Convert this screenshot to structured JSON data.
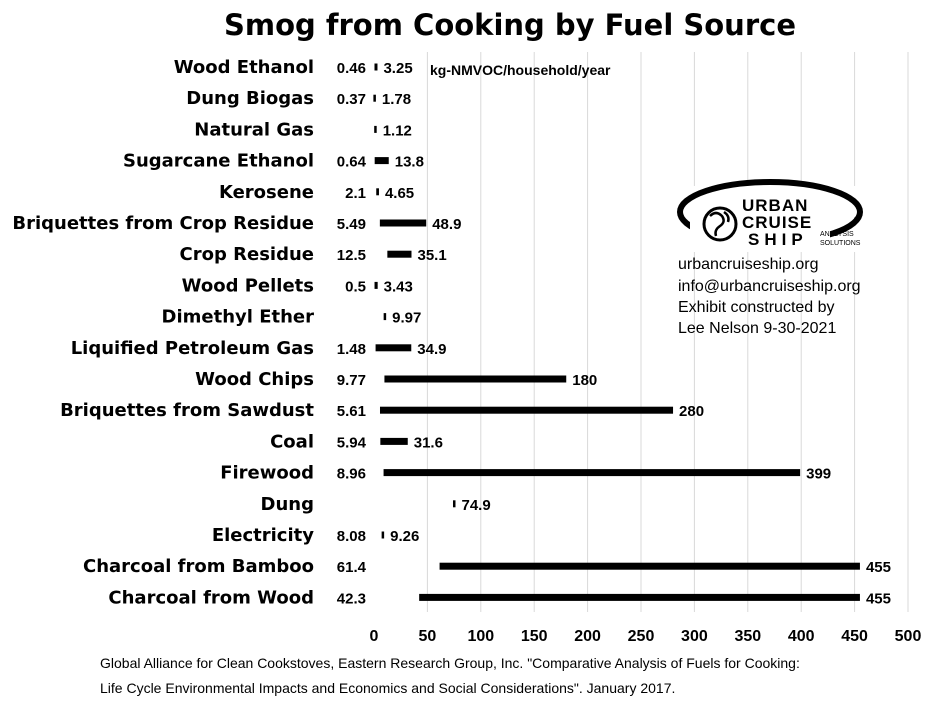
{
  "chart_data": {
    "type": "bar",
    "orientation": "horizontal",
    "subtype": "floating-range",
    "title": "Smog from Cooking by Fuel Source",
    "unit_label": "kg-NMVOC/household/year",
    "xlim": [
      0,
      500
    ],
    "x_ticks": [
      "0",
      "50",
      "100",
      "150",
      "200",
      "250",
      "300",
      "350",
      "400",
      "450",
      "500"
    ],
    "grid": "vertical",
    "categories": [
      {
        "name": "Wood Ethanol",
        "low": 0.46,
        "high": 3.25,
        "low_label": "0.46",
        "high_label": "3.25"
      },
      {
        "name": "Dung Biogas",
        "low": 0.37,
        "high": 1.78,
        "low_label": "0.37",
        "high_label": "1.78"
      },
      {
        "name": "Natural Gas",
        "low": 1.12,
        "high": 1.12,
        "low_label": "",
        "high_label": "1.12"
      },
      {
        "name": "Sugarcane Ethanol",
        "low": 0.64,
        "high": 13.8,
        "low_label": "0.64",
        "high_label": "13.8"
      },
      {
        "name": "Kerosene",
        "low": 2.1,
        "high": 4.65,
        "low_label": "2.1",
        "high_label": "4.65"
      },
      {
        "name": "Briquettes from Crop Residue",
        "low": 5.49,
        "high": 48.9,
        "low_label": "5.49",
        "high_label": "48.9"
      },
      {
        "name": "Crop Residue",
        "low": 12.5,
        "high": 35.1,
        "low_label": "12.5",
        "high_label": "35.1"
      },
      {
        "name": "Wood Pellets",
        "low": 0.5,
        "high": 3.43,
        "low_label": "0.5",
        "high_label": "3.43"
      },
      {
        "name": "Dimethyl Ether",
        "low": 9.97,
        "high": 9.97,
        "low_label": "",
        "high_label": "9.97"
      },
      {
        "name": "Liquified Petroleum Gas",
        "low": 1.48,
        "high": 34.9,
        "low_label": "1.48",
        "high_label": "34.9"
      },
      {
        "name": "Wood Chips",
        "low": 9.77,
        "high": 180,
        "low_label": "9.77",
        "high_label": "180"
      },
      {
        "name": "Briquettes from Sawdust",
        "low": 5.61,
        "high": 280,
        "low_label": "5.61",
        "high_label": "280"
      },
      {
        "name": "Coal",
        "low": 5.94,
        "high": 31.6,
        "low_label": "5.94",
        "high_label": "31.6"
      },
      {
        "name": "Firewood",
        "low": 8.96,
        "high": 399,
        "low_label": "8.96",
        "high_label": "399"
      },
      {
        "name": "Dung",
        "low": 74.9,
        "high": 74.9,
        "low_label": "",
        "high_label": "74.9"
      },
      {
        "name": "Electricity",
        "low": 8.08,
        "high": 9.26,
        "low_label": "8.08",
        "high_label": "9.26"
      },
      {
        "name": "Charcoal from Bamboo",
        "low": 61.4,
        "high": 455,
        "low_label": "61.4",
        "high_label": "455"
      },
      {
        "name": "Charcoal from Wood",
        "low": 42.3,
        "high": 455,
        "low_label": "42.3",
        "high_label": "455"
      }
    ],
    "bar_color": "#000000",
    "grid_color": "#d9d9d9"
  },
  "logo": {
    "line1": "URBAN",
    "line2": "CRUISE",
    "line3": "SHIP",
    "tag1": "ANALYSIS",
    "tag2": "SOLUTIONS",
    "registered": "®"
  },
  "info": {
    "website": "urbancruiseship.org",
    "email": "info@urbancruiseship.org",
    "credit1": "Exhibit constructed by",
    "credit2": "Lee Nelson 9-30-2021"
  },
  "source": {
    "line1": "Global Alliance for Clean Cookstoves, Eastern Research Group, Inc. \"Comparative Analysis of Fuels for Cooking:",
    "line2": "Life Cycle Environmental Impacts and Economics and Social Considerations\". January 2017."
  }
}
